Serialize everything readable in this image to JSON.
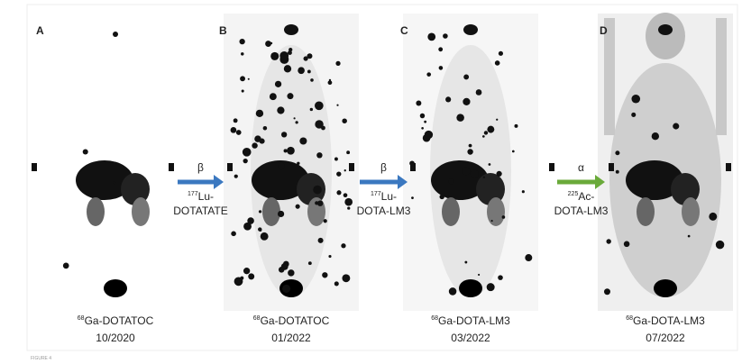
{
  "panels": [
    {
      "letter": "A",
      "isotope": "68",
      "tracer": "Ga-DOTATOC",
      "date": "10/2020"
    },
    {
      "letter": "B",
      "isotope": "68",
      "tracer": "Ga-DOTATOC",
      "date": "01/2022"
    },
    {
      "letter": "C",
      "isotope": "68",
      "tracer": "Ga-DOTA-LM3",
      "date": "03/2022"
    },
    {
      "letter": "D",
      "isotope": "68",
      "tracer": "Ga-DOTA-LM3",
      "date": "07/2022"
    }
  ],
  "therapies": [
    {
      "emitter": "β",
      "isotope": "177",
      "element": "Lu-",
      "compound": "DOTATATE"
    },
    {
      "emitter": "β",
      "isotope": "177",
      "element": "Lu-",
      "compound": "DOTA-LM3"
    },
    {
      "emitter": "α",
      "isotope": "225",
      "element": "Ac-",
      "compound": "DOTA-LM3"
    }
  ],
  "figure_label": "FIGURE 4"
}
